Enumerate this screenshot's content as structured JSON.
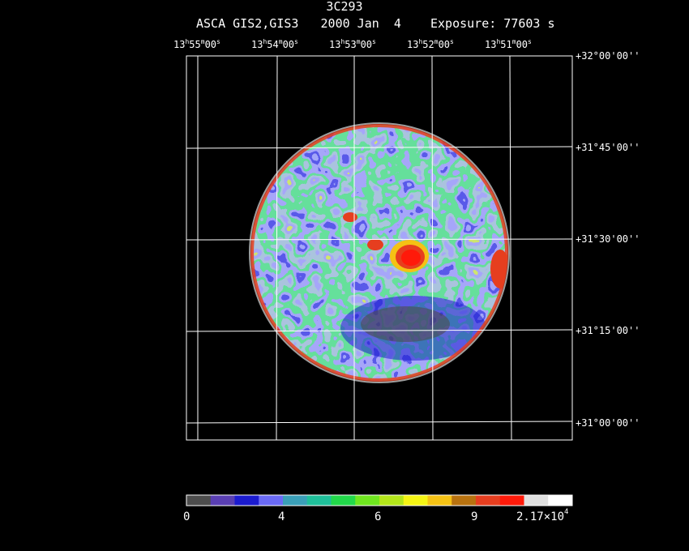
{
  "title": "3C293",
  "subtitle": "ASCA GIS2,GIS3   2000 Jan  4    Exposure: 77603 s",
  "ra_labels": [
    {
      "h": "13",
      "m": "55",
      "s": "00"
    },
    {
      "h": "13",
      "m": "54",
      "s": "00"
    },
    {
      "h": "13",
      "m": "53",
      "s": "00"
    },
    {
      "h": "13",
      "m": "52",
      "s": "00"
    },
    {
      "h": "13",
      "m": "51",
      "s": "00"
    }
  ],
  "dec_labels": [
    "+32°00'00''",
    "+31°45'00''",
    "+31°30'00''",
    "+31°15'00''",
    "+31°00'00''"
  ],
  "colorbar": {
    "labels": [
      "0",
      "4",
      "6",
      "9"
    ],
    "max_label": {
      "base": "2.17×10",
      "exp": "4"
    },
    "colors": [
      "#4d4d4d",
      "#5a3fb3",
      "#1b1bcf",
      "#6a6af5",
      "#3a9fb8",
      "#1fbf9a",
      "#22d84a",
      "#6fe61f",
      "#b3e61a",
      "#f5f514",
      "#f5c214",
      "#b8720f",
      "#e63e1f",
      "#ff1a0a",
      "#e0e0e0",
      "#ffffff"
    ]
  }
}
